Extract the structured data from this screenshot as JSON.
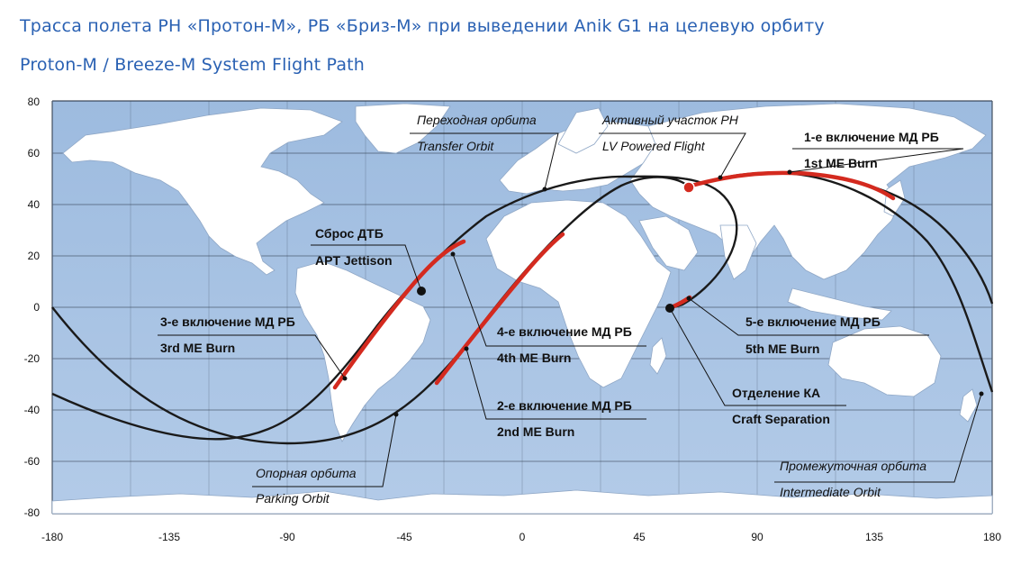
{
  "title_ru": "Трасса полета РН «Протон-М», РБ «Бриз-М» при выведении Anik G1 на целевую орбиту",
  "title_en": "Proton-M / Breeze-M System Flight Path",
  "axes": {
    "x_ticks": [
      "-180",
      "-135",
      "-90",
      "-45",
      "0",
      "45",
      "90",
      "135",
      "180"
    ],
    "y_ticks": [
      "80",
      "60",
      "40",
      "20",
      "0",
      "-20",
      "-40",
      "-60",
      "-80"
    ]
  },
  "labels": {
    "transfer_ru": "Переходная орбита",
    "transfer_en": "Transfer Orbit",
    "active_ru": "Активный участок РН",
    "active_en": "LV Powered Flight",
    "burn1_ru": "1-е включение МД РБ",
    "burn1_en": "1st ME Burn",
    "apt_ru": "Сброс ДТБ",
    "apt_en": "APT Jettison",
    "burn3_ru": "3-е включение МД РБ",
    "burn3_en": "3rd ME Burn",
    "burn4_ru": "4-е включение МД РБ",
    "burn4_en": "4th ME Burn",
    "burn5_ru": "5-е включение МД РБ",
    "burn5_en": "5th ME Burn",
    "burn2_ru": "2-е включение МД РБ",
    "burn2_en": "2nd ME Burn",
    "sep_ru": "Отделение КА",
    "sep_en": "Craft Separation",
    "parking_ru": "Опорная орбита",
    "parking_en": "Parking Orbit",
    "intermediate_ru": "Промежуточная орбита",
    "intermediate_en": "Intermediate Orbit"
  },
  "colors": {
    "ocean": "#a8c3e2",
    "land": "#ffffff",
    "trajectory": "#1a1a1a",
    "burn": "#d42a1f",
    "title": "#2a61b3"
  }
}
